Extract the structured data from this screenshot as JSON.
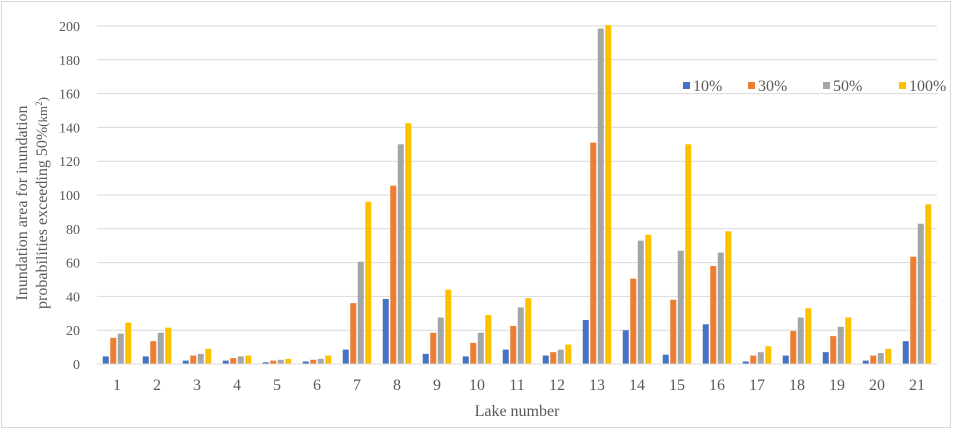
{
  "chart_data": {
    "type": "bar",
    "xlabel": "Lake number",
    "ylabel": {
      "line1": "Inundation area for inundation",
      "line2": "probabilities exceeding 50%",
      "unit_prefix": "(km",
      "unit_sup": "2",
      "unit_suffix": ")"
    },
    "ylim": [
      0,
      200
    ],
    "yticks": [
      0,
      20,
      40,
      60,
      80,
      100,
      120,
      140,
      160,
      180,
      200
    ],
    "grid": true,
    "legend_position": "right",
    "categories": [
      "1",
      "2",
      "3",
      "4",
      "5",
      "6",
      "7",
      "8",
      "9",
      "10",
      "11",
      "12",
      "13",
      "14",
      "15",
      "16",
      "17",
      "18",
      "19",
      "20",
      "21"
    ],
    "series": [
      {
        "name": "10%",
        "color": "#4472c4",
        "values": [
          4.5,
          4.5,
          2,
          2,
          1,
          1.5,
          8.5,
          38.5,
          6,
          4.5,
          8.5,
          5,
          26,
          20,
          5.5,
          23.5,
          1.5,
          5,
          7,
          2,
          13.5
        ]
      },
      {
        "name": "30%",
        "color": "#ed7d31",
        "values": [
          15.5,
          13.5,
          5,
          3.5,
          2,
          2.5,
          36,
          105.5,
          18.5,
          12.5,
          22.5,
          7,
          131,
          50.5,
          38,
          58,
          5,
          19.5,
          16.5,
          5,
          63.5
        ]
      },
      {
        "name": "50%",
        "color": "#a5a5a5",
        "values": [
          18,
          18.5,
          6,
          4.5,
          2.5,
          3,
          60.5,
          130,
          27.5,
          18.5,
          33.5,
          8.5,
          198.5,
          73,
          67,
          66,
          7,
          27.5,
          22,
          6.5,
          83
        ]
      },
      {
        "name": "100%",
        "color": "#ffc000",
        "values": [
          24.5,
          21.5,
          9,
          5,
          3,
          5,
          96,
          142.5,
          44,
          29,
          39,
          11.5,
          200.5,
          76.5,
          130,
          78.5,
          10.5,
          33,
          27.5,
          9,
          94.5
        ]
      }
    ]
  }
}
